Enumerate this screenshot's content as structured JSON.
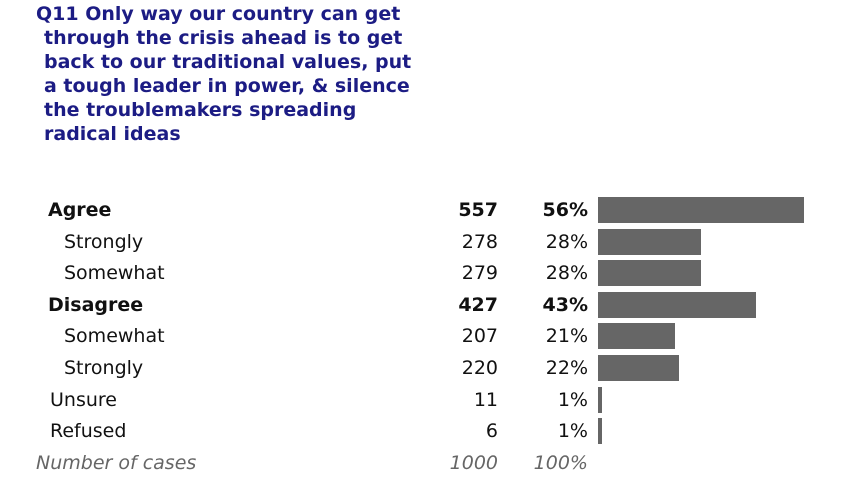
{
  "title": "Q11 Only way our country can get through the crisis ahead is to get back to our traditional values, put a tough leader in power, & silence the troublemakers spreading radical ideas",
  "rows": [
    {
      "label": "Agree",
      "count": 557,
      "percent": {
        "value": 56,
        "label": "56%"
      },
      "children": [
        {
          "label": "Strongly",
          "count": 278,
          "percent": {
            "value": 28,
            "label": "28%"
          }
        },
        {
          "label": "Somewhat",
          "count": 279,
          "percent": {
            "value": 28,
            "label": "28%"
          }
        }
      ]
    },
    {
      "label": "Disagree",
      "count": 427,
      "percent": {
        "value": 43,
        "label": "43%"
      },
      "children": [
        {
          "label": "Somewhat",
          "count": 207,
          "percent": {
            "value": 21,
            "label": "21%"
          }
        },
        {
          "label": "Strongly",
          "count": 220,
          "percent": {
            "value": 22,
            "label": "22%"
          }
        }
      ]
    },
    {
      "label": "Unsure",
      "count": 11,
      "percent": {
        "value": 1,
        "label": "1%"
      }
    },
    {
      "label": "Refused",
      "count": 6,
      "percent": {
        "value": 1,
        "label": "1%"
      }
    }
  ],
  "footer": {
    "label": "Number of cases",
    "count": 1000,
    "percent": {
      "value": 100,
      "label": "100%"
    }
  },
  "bar_color": "#666666"
}
